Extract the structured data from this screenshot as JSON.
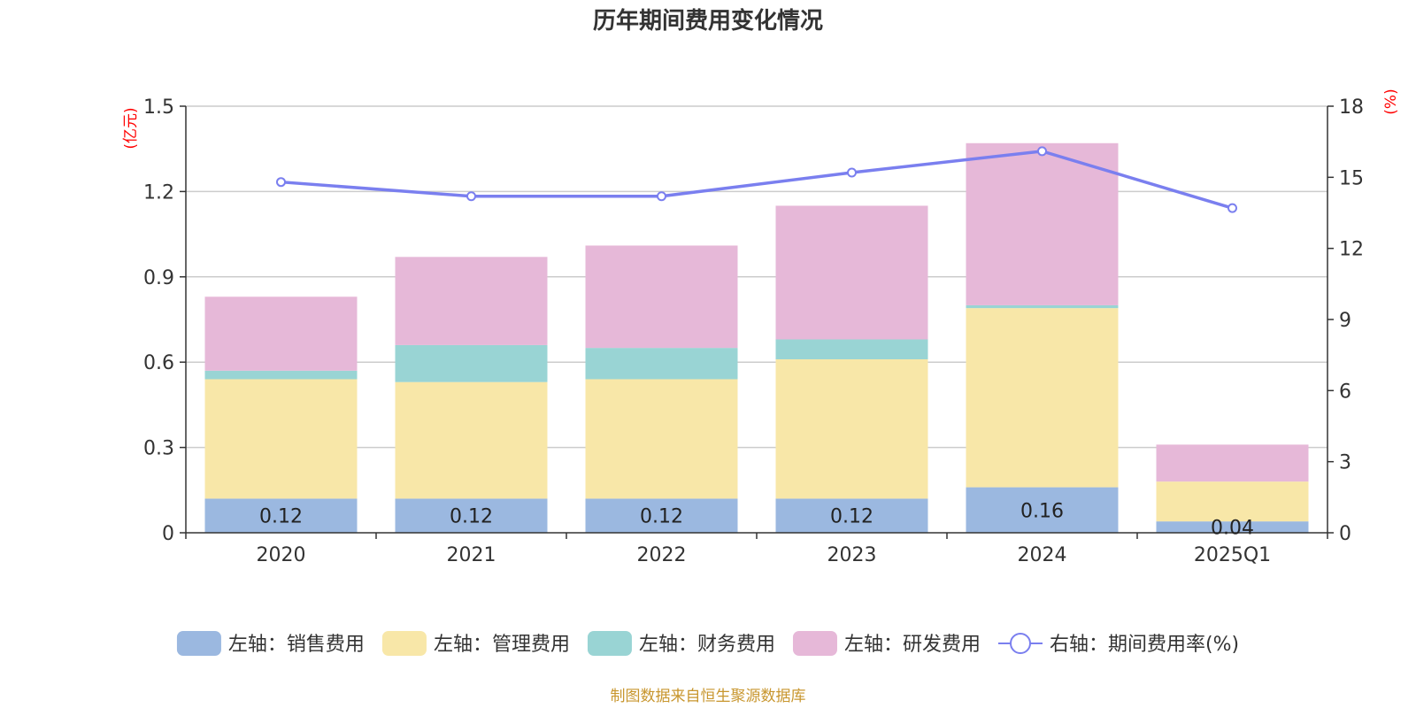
{
  "chart_data": {
    "type": "bar",
    "stacked": true,
    "title": "历年期间费用变化情况",
    "categories": [
      "2020",
      "2021",
      "2022",
      "2023",
      "2024",
      "2025Q1"
    ],
    "series": [
      {
        "name": "左轴：销售费用",
        "axis": "left",
        "color": "#9bb8e0",
        "values": [
          0.12,
          0.12,
          0.12,
          0.12,
          0.16,
          0.04
        ]
      },
      {
        "name": "左轴：管理费用",
        "axis": "left",
        "color": "#f8e7a8",
        "values": [
          0.42,
          0.41,
          0.42,
          0.49,
          0.63,
          0.14
        ]
      },
      {
        "name": "左轴：财务费用",
        "axis": "left",
        "color": "#99d4d4",
        "values": [
          0.03,
          0.13,
          0.11,
          0.07,
          0.01,
          0.0
        ]
      },
      {
        "name": "左轴：研发费用",
        "axis": "left",
        "color": "#e6b8d8",
        "values": [
          0.26,
          0.31,
          0.36,
          0.47,
          0.57,
          0.13
        ]
      },
      {
        "name": "右轴：期间费用率(%)",
        "axis": "right",
        "type": "line",
        "color": "#7a7fef",
        "values": [
          14.8,
          14.2,
          14.2,
          15.2,
          16.1,
          13.7
        ]
      }
    ],
    "data_labels": [
      "0.12",
      "0.12",
      "0.12",
      "0.12",
      "0.16",
      "0.04"
    ],
    "left_axis": {
      "unit": "(亿元)",
      "ylim": [
        0,
        1.5
      ],
      "ticks": [
        "0",
        "0.3",
        "0.6",
        "0.9",
        "1.2",
        "1.5"
      ]
    },
    "right_axis": {
      "unit": "(%)",
      "ylim": [
        0,
        18
      ],
      "ticks": [
        "0",
        "3",
        "6",
        "9",
        "12",
        "15",
        "18"
      ]
    },
    "grid": true,
    "legend_position": "bottom"
  },
  "source": "制图数据来自恒生聚源数据库"
}
